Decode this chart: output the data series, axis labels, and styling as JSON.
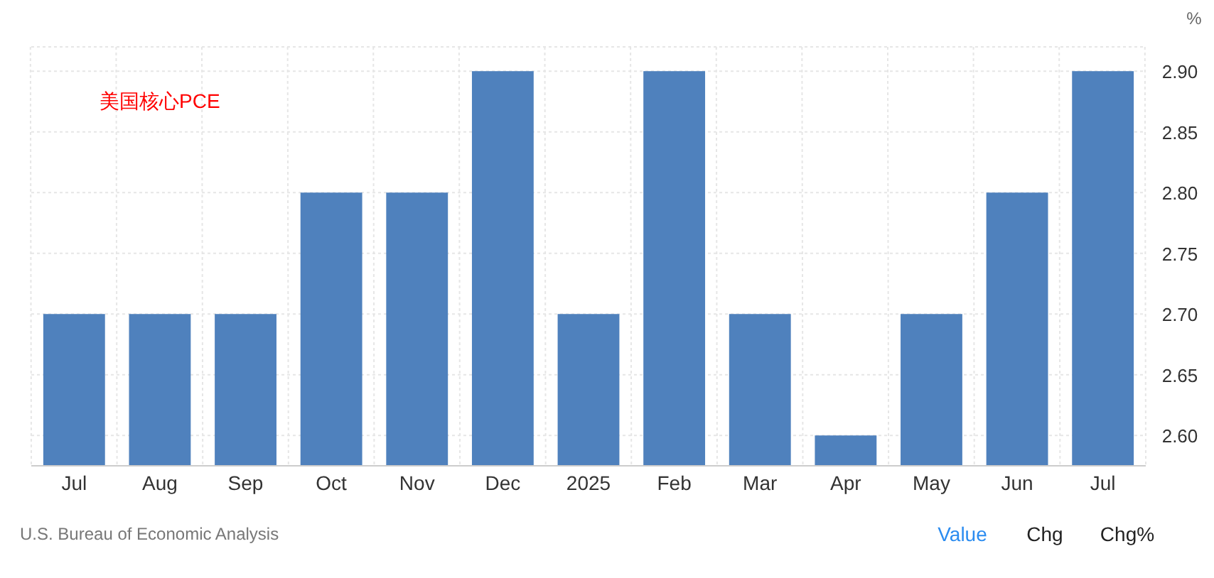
{
  "chart_data": {
    "type": "bar",
    "title": "美国核心PCE",
    "ylabel": "%",
    "categories": [
      "Jul",
      "Aug",
      "Sep",
      "Oct",
      "Nov",
      "Dec",
      "2025",
      "Feb",
      "Mar",
      "Apr",
      "May",
      "Jun",
      "Jul"
    ],
    "values": [
      2.7,
      2.7,
      2.7,
      2.8,
      2.8,
      2.9,
      2.7,
      2.9,
      2.7,
      2.6,
      2.7,
      2.8,
      2.9
    ],
    "color": "#4f81bd",
    "ylim": [
      2.575,
      2.92
    ],
    "yticks": [
      {
        "value": 2.6,
        "label": "2.60"
      },
      {
        "value": 2.65,
        "label": "2.65"
      },
      {
        "value": 2.7,
        "label": "2.70"
      },
      {
        "value": 2.75,
        "label": "2.75"
      },
      {
        "value": 2.8,
        "label": "2.80"
      },
      {
        "value": 2.85,
        "label": "2.85"
      },
      {
        "value": 2.9,
        "label": "2.90"
      }
    ],
    "grid": true,
    "annotations": [
      "U.S. Bureau of Economic Analysis",
      "Value",
      "Chg",
      "Chg%"
    ]
  }
}
